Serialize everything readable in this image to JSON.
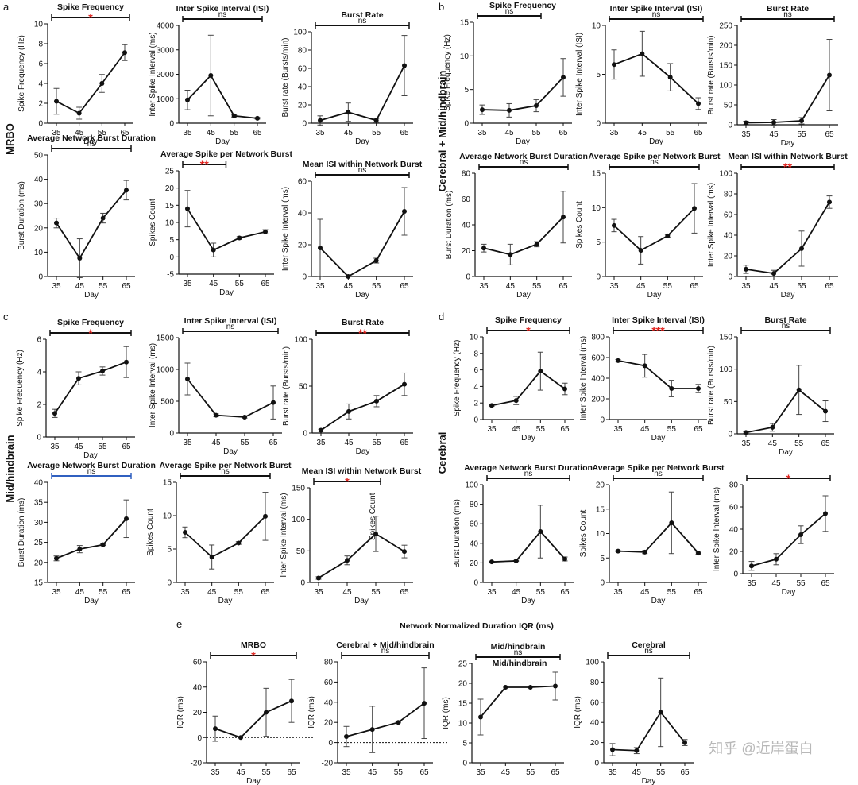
{
  "panels": [
    {
      "label": "a",
      "row_label": "MRBO"
    },
    {
      "label": "b",
      "row_label": "Cerebral + Mid/hindbrain"
    },
    {
      "label": "c",
      "row_label": "Mid/hindbrain"
    },
    {
      "label": "d",
      "row_label": "Cerebral"
    },
    {
      "label": "e",
      "title": "Network Normalized Duration IQR (ms)"
    }
  ],
  "overlay_texts": {
    "mean_isi_c": "Spikes Count",
    "iqr_midhind": "Mid/hindbrain"
  },
  "watermark": "知乎 @近岸蛋白",
  "colors": {
    "line": "#111111",
    "sig_red": "#e0201b",
    "bracket_blue": "#3060c0"
  },
  "chart_data": [
    {
      "id": "a1",
      "type": "line",
      "title": "Spike Frequency",
      "ylabel": "Spike Frequency (Hz)",
      "xlabel": "Day",
      "x": [
        35,
        45,
        55,
        65
      ],
      "y": [
        2.2,
        1.0,
        4.0,
        7.1
      ],
      "err": [
        1.3,
        0.6,
        0.9,
        0.8
      ],
      "ylim": [
        0,
        10
      ],
      "yticks": [
        0,
        2,
        4,
        6,
        8,
        10
      ],
      "sig": "*",
      "sig_color": "red",
      "bracket": [
        35,
        65
      ]
    },
    {
      "id": "a2",
      "type": "line",
      "title": "Inter Spike Interval (ISI)",
      "ylabel": "Inter Spike Interval (ms)",
      "xlabel": "Day",
      "x": [
        35,
        45,
        55,
        65
      ],
      "y": [
        950,
        1950,
        300,
        200
      ],
      "err": [
        400,
        1650,
        50,
        30
      ],
      "ylim": [
        0,
        4000
      ],
      "yticks": [
        0,
        1000,
        2000,
        3000,
        4000
      ],
      "sig": "ns",
      "sig_color": "black",
      "bracket": [
        35,
        65
      ]
    },
    {
      "id": "a3",
      "type": "line",
      "title": "Burst Rate",
      "ylabel": "Burst rate (Bursts/min)",
      "xlabel": "Day",
      "x": [
        35,
        45,
        55,
        65
      ],
      "y": [
        3,
        12,
        3,
        63
      ],
      "err": [
        5,
        10,
        2,
        33
      ],
      "ylim": [
        0,
        100
      ],
      "yticks": [
        0,
        20,
        40,
        60,
        80,
        100
      ],
      "sig": "ns",
      "sig_color": "black",
      "bracket": [
        35,
        65
      ]
    },
    {
      "id": "a4",
      "type": "line",
      "title": "Average Network Burst Duration",
      "ylabel": "Burst Duration (ms)",
      "xlabel": "Day",
      "x": [
        35,
        45,
        55,
        65
      ],
      "y": [
        22,
        7.5,
        24,
        35.5
      ],
      "err": [
        2,
        8,
        2,
        4
      ],
      "ylim": [
        0,
        50
      ],
      "yticks": [
        0,
        10,
        20,
        30,
        40,
        50
      ],
      "sig": "ns",
      "sig_color": "black",
      "bracket": [
        35,
        65
      ]
    },
    {
      "id": "a5",
      "type": "line",
      "title": "Average Spike per Network Burst",
      "ylabel": "Spikes Count",
      "xlabel": "Day",
      "x": [
        35,
        45,
        55,
        65
      ],
      "y": [
        14,
        2,
        5.5,
        7.3
      ],
      "err": [
        5.3,
        2,
        0.4,
        0.6
      ],
      "ylim": [
        -5,
        25
      ],
      "yticks": [
        -5,
        0,
        5,
        10,
        15,
        20,
        25
      ],
      "sig": "**",
      "sig_color": "red",
      "bracket": [
        35,
        48
      ]
    },
    {
      "id": "a6",
      "type": "line",
      "title": "Mean ISI within Network Burst",
      "ylabel": "Inter Spike Interval (ms)",
      "xlabel": "Day",
      "x": [
        35,
        45,
        55,
        65
      ],
      "y": [
        18,
        0,
        10,
        41
      ],
      "err": [
        18,
        0,
        1.5,
        15
      ],
      "ylim": [
        0,
        60
      ],
      "yticks": [
        0,
        20,
        40,
        60
      ],
      "sig": "ns",
      "sig_color": "black",
      "bracket": [
        35,
        65
      ]
    },
    {
      "id": "b1",
      "type": "line",
      "title": "Spike Frequency",
      "ylabel": "Spike Frequency (Hz)",
      "xlabel": "Day",
      "x": [
        35,
        45,
        55,
        65
      ],
      "y": [
        2.0,
        1.9,
        2.6,
        6.8
      ],
      "err": [
        0.7,
        1.0,
        0.9,
        2.8
      ],
      "ylim": [
        0,
        15
      ],
      "yticks": [
        0,
        5,
        10,
        15
      ],
      "sig": "ns",
      "sig_color": "black",
      "bracket": [
        35,
        55
      ]
    },
    {
      "id": "b2",
      "type": "line",
      "title": "Inter Spike Interval (ISI)",
      "ylabel": "Inter Spike Interval (ISI)",
      "xlabel": "Day",
      "x": [
        35,
        45,
        55,
        65
      ],
      "y": [
        6.0,
        7.1,
        4.7,
        2.0
      ],
      "err": [
        1.5,
        2.3,
        1.4,
        0.6
      ],
      "ylim": [
        0,
        10
      ],
      "yticks": [
        0,
        5,
        10
      ],
      "sig": "ns",
      "sig_color": "black",
      "bracket": [
        35,
        65
      ]
    },
    {
      "id": "b3",
      "type": "line",
      "title": "Burst Rate",
      "ylabel": "Burst rate (Bursts/min)",
      "xlabel": "Day",
      "x": [
        35,
        45,
        55,
        65
      ],
      "y": [
        5,
        6,
        10,
        125
      ],
      "err": [
        4,
        7,
        8,
        90
      ],
      "ylim": [
        0,
        250
      ],
      "yticks": [
        0,
        50,
        100,
        150,
        200,
        250
      ],
      "sig": "ns",
      "sig_color": "black",
      "bracket": [
        35,
        65
      ]
    },
    {
      "id": "b4",
      "type": "line",
      "title": "Average Network Burst Duration",
      "ylabel": "Burst Duration (ms)",
      "xlabel": "Day",
      "x": [
        35,
        45,
        55,
        65
      ],
      "y": [
        22,
        17,
        25,
        46
      ],
      "err": [
        3,
        8,
        2,
        20
      ],
      "ylim": [
        0,
        80
      ],
      "yticks": [
        0,
        20,
        40,
        60,
        80
      ],
      "sig": "ns",
      "sig_color": "black",
      "bracket": [
        35,
        65
      ]
    },
    {
      "id": "b5",
      "type": "line",
      "title": "Average Spike per Network Burst",
      "ylabel": "Spikes Count",
      "xlabel": "Day",
      "x": [
        35,
        45,
        55,
        65
      ],
      "y": [
        7.4,
        3.8,
        5.9,
        9.9
      ],
      "err": [
        0.9,
        2,
        0.2,
        3.6
      ],
      "ylim": [
        0,
        15
      ],
      "yticks": [
        0,
        5,
        10,
        15
      ],
      "sig": "ns",
      "sig_color": "black",
      "bracket": [
        35,
        65
      ]
    },
    {
      "id": "b6",
      "type": "line",
      "title": "Mean ISI within Network Burst",
      "ylabel": "Inter Spike Interval (ms)",
      "xlabel": "Day",
      "x": [
        35,
        45,
        55,
        65
      ],
      "y": [
        7,
        3,
        27,
        72
      ],
      "err": [
        4,
        3,
        17,
        6
      ],
      "ylim": [
        0,
        100
      ],
      "yticks": [
        0,
        20,
        40,
        60,
        80,
        100
      ],
      "sig": "**",
      "sig_color": "red",
      "bracket": [
        35,
        65
      ]
    },
    {
      "id": "c1",
      "type": "line",
      "title": "Spike Frequency",
      "ylabel": "Spike Frequency (Hz)",
      "xlabel": "Day",
      "x": [
        35,
        45,
        55,
        65
      ],
      "y": [
        1.45,
        3.6,
        4.05,
        4.6
      ],
      "err": [
        0.25,
        0.4,
        0.25,
        0.95
      ],
      "ylim": [
        0,
        6
      ],
      "yticks": [
        0,
        2,
        4,
        6
      ],
      "sig": "*",
      "sig_color": "red",
      "bracket": [
        35,
        65
      ]
    },
    {
      "id": "c2",
      "type": "line",
      "title": "Inter Spike Interval (ISI)",
      "ylabel": "Inter Spike Interval (ms)",
      "xlabel": "Day",
      "x": [
        35,
        45,
        55,
        65
      ],
      "y": [
        850,
        280,
        250,
        480
      ],
      "err": [
        250,
        20,
        15,
        260
      ],
      "ylim": [
        0,
        1500
      ],
      "yticks": [
        0,
        500,
        1000,
        1500
      ],
      "sig": "ns",
      "sig_color": "black",
      "bracket": [
        35,
        65
      ]
    },
    {
      "id": "c3",
      "type": "line",
      "title": "Burst Rate",
      "ylabel": "Burst rate (Bursts/min)",
      "xlabel": "Day",
      "x": [
        35,
        45,
        55,
        65
      ],
      "y": [
        3,
        23,
        34,
        52
      ],
      "err": [
        1,
        8,
        6,
        12
      ],
      "ylim": [
        0,
        100
      ],
      "yticks": [
        0,
        50,
        100
      ],
      "sig": "**",
      "sig_color": "red",
      "bracket": [
        35,
        65
      ]
    },
    {
      "id": "c4",
      "type": "line",
      "title": "Average Network Burst Duration",
      "ylabel": "Burst Duration (ms)",
      "xlabel": "Day",
      "x": [
        35,
        45,
        55,
        65
      ],
      "y": [
        21,
        23.3,
        24.4,
        30.9
      ],
      "err": [
        0.6,
        0.9,
        0.2,
        4.7
      ],
      "ylim": [
        15,
        40
      ],
      "yticks": [
        15,
        20,
        25,
        30,
        35,
        40
      ],
      "sig": "ns",
      "sig_color": "black",
      "bracket": [
        35,
        65
      ],
      "bracket_color": "blue"
    },
    {
      "id": "c5",
      "type": "line",
      "title": "Average Spike per Network Burst",
      "ylabel": "Spikes Count",
      "xlabel": "Day",
      "x": [
        35,
        45,
        55,
        65
      ],
      "y": [
        7.5,
        3.8,
        5.9,
        9.9
      ],
      "err": [
        0.8,
        1.8,
        0.2,
        3.6
      ],
      "ylim": [
        0,
        15
      ],
      "yticks": [
        0,
        5,
        10,
        15
      ],
      "sig": "ns",
      "sig_color": "black",
      "bracket": [
        35,
        65
      ]
    },
    {
      "id": "c6",
      "type": "line",
      "title": "Mean ISI within Network Burst",
      "ylabel": "Inter Spike Interval (ms)",
      "xlabel": "Day",
      "x": [
        35,
        45,
        55,
        65
      ],
      "y": [
        7,
        35,
        77,
        49
      ],
      "err": [
        2,
        7,
        28,
        10
      ],
      "ylim": [
        0,
        150
      ],
      "yticks": [
        0,
        50,
        100,
        150
      ],
      "sig": "*",
      "sig_color": "red",
      "bracket": [
        35,
        55
      ]
    },
    {
      "id": "d1",
      "type": "line",
      "title": "Spike Frequency",
      "ylabel": "Spike Frequency (Hz)",
      "xlabel": "Day",
      "x": [
        35,
        45,
        55,
        65
      ],
      "y": [
        1.7,
        2.3,
        5.85,
        3.7
      ],
      "err": [
        0.1,
        0.5,
        2.3,
        0.7
      ],
      "ylim": [
        0,
        10
      ],
      "yticks": [
        0,
        2,
        4,
        6,
        8,
        10
      ],
      "sig": "*",
      "sig_color": "red",
      "bracket": [
        35,
        65
      ]
    },
    {
      "id": "d2",
      "type": "line",
      "title": "Inter Spike Interval (ISI)",
      "ylabel": "Inter Spike Interval (ms)",
      "xlabel": "Day",
      "x": [
        35,
        45,
        55,
        65
      ],
      "y": [
        570,
        520,
        300,
        300
      ],
      "err": [
        10,
        110,
        80,
        40
      ],
      "ylim": [
        0,
        800
      ],
      "yticks": [
        0,
        200,
        400,
        600,
        800
      ],
      "sig": "***",
      "sig_color": "red",
      "bracket": [
        35,
        65
      ]
    },
    {
      "id": "d3",
      "type": "line",
      "title": "Burst Rate",
      "ylabel": "Burst rate (Bursts/min)",
      "xlabel": "Day",
      "x": [
        35,
        45,
        55,
        65
      ],
      "y": [
        2,
        10,
        68,
        35
      ],
      "err": [
        1,
        6,
        38,
        16
      ],
      "ylim": [
        0,
        150
      ],
      "yticks": [
        0,
        50,
        100,
        150
      ],
      "sig": "ns",
      "sig_color": "black",
      "bracket": [
        35,
        65
      ]
    },
    {
      "id": "d4",
      "type": "line",
      "title": "Average Network Burst Duration",
      "ylabel": "Burst Duration (ms)",
      "xlabel": "Day",
      "x": [
        35,
        45,
        55,
        65
      ],
      "y": [
        21,
        22,
        52,
        24
      ],
      "err": [
        0.5,
        0.5,
        27,
        2
      ],
      "ylim": [
        0,
        100
      ],
      "yticks": [
        0,
        20,
        40,
        60,
        80,
        100
      ],
      "sig": "ns",
      "sig_color": "black",
      "bracket": [
        35,
        65
      ]
    },
    {
      "id": "d5",
      "type": "line",
      "title": "Average Spike per Network Burst",
      "ylabel": "Spikes Count",
      "xlabel": "Day",
      "x": [
        35,
        45,
        55,
        65
      ],
      "y": [
        6.4,
        6.2,
        12.2,
        6.0
      ],
      "err": [
        0.1,
        0.3,
        6.3,
        0.2
      ],
      "ylim": [
        0,
        20
      ],
      "yticks": [
        0,
        5,
        10,
        15,
        20
      ],
      "sig": "ns",
      "sig_color": "black",
      "bracket": [
        35,
        65
      ]
    },
    {
      "id": "d6",
      "type": "line",
      "title": "",
      "ylabel": "Inter Spike Interval (ms)",
      "xlabel": "Day",
      "x": [
        35,
        45,
        55,
        65
      ],
      "y": [
        7,
        13,
        35,
        54
      ],
      "err": [
        4,
        5,
        8,
        16
      ],
      "ylim": [
        0,
        80
      ],
      "yticks": [
        0,
        20,
        40,
        60,
        80
      ],
      "sig": "*",
      "sig_color": "red",
      "bracket": [
        35,
        65
      ]
    },
    {
      "id": "e1",
      "type": "line",
      "title": "MRBO",
      "ylabel": "IQR (ms)",
      "xlabel": "Day",
      "x": [
        35,
        45,
        55,
        65
      ],
      "y": [
        7,
        0,
        20,
        29
      ],
      "err": [
        10,
        0,
        19,
        17
      ],
      "ylim": [
        -20,
        60
      ],
      "yticks": [
        -20,
        0,
        20,
        40,
        60
      ],
      "sig": "*",
      "sig_color": "red",
      "bracket": [
        35,
        65
      ],
      "zero_line": true
    },
    {
      "id": "e2",
      "type": "line",
      "title": "Cerebral + Mid/hindbrain",
      "ylabel": "IQR (ms)",
      "xlabel": "",
      "x": [
        35,
        45,
        55,
        65
      ],
      "y": [
        6,
        13,
        20,
        39
      ],
      "err": [
        10,
        23,
        0.5,
        35
      ],
      "ylim": [
        -20,
        80
      ],
      "yticks": [
        -20,
        0,
        20,
        40,
        60,
        80
      ],
      "sig": "ns",
      "sig_color": "black",
      "bracket": [
        35,
        65
      ],
      "zero_line": true
    },
    {
      "id": "e3",
      "type": "line",
      "title": "Mid/hindbrain",
      "ylabel": "IQR (ms)",
      "xlabel": "",
      "x": [
        35,
        45,
        55,
        65
      ],
      "y": [
        11.5,
        19,
        19,
        19.3
      ],
      "err": [
        4.5,
        0,
        0,
        3.5
      ],
      "ylim": [
        0,
        25
      ],
      "yticks": [
        0,
        5,
        10,
        15,
        20,
        25
      ],
      "sig": "ns",
      "sig_color": "black",
      "bracket": [
        35,
        65
      ]
    },
    {
      "id": "e4",
      "type": "line",
      "title": "Cerebral",
      "ylabel": "IQR (ms)",
      "xlabel": "Day",
      "x": [
        35,
        45,
        55,
        65
      ],
      "y": [
        13,
        12,
        50,
        20
      ],
      "err": [
        6,
        3,
        34,
        3
      ],
      "ylim": [
        0,
        100
      ],
      "yticks": [
        0,
        20,
        40,
        60,
        80,
        100
      ],
      "sig": "ns",
      "sig_color": "black",
      "bracket": [
        35,
        65
      ]
    }
  ]
}
